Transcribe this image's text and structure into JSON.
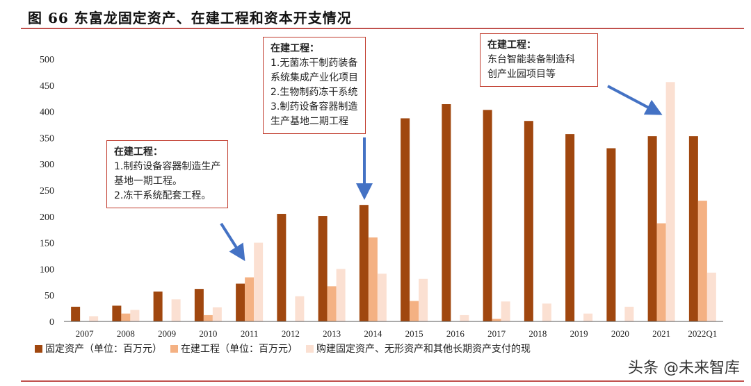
{
  "header": {
    "title": "图 66 东富龙固定资产、在建工程和资本开支情况"
  },
  "chart_data": {
    "type": "bar",
    "categories": [
      "2007",
      "2008",
      "2009",
      "2010",
      "2011",
      "2012",
      "2013",
      "2014",
      "2015",
      "2016",
      "2017",
      "2018",
      "2019",
      "2020",
      "2021",
      "2022Q1"
    ],
    "ylim": [
      0,
      500
    ],
    "yticks": [
      0,
      50,
      100,
      150,
      200,
      250,
      300,
      350,
      400,
      450,
      500
    ],
    "series": [
      {
        "name": "固定资产（单位：百万元）",
        "color": "#a0470f",
        "values": [
          28,
          30,
          57,
          62,
          72,
          205,
          201,
          222,
          387,
          414,
          403,
          382,
          357,
          330,
          353,
          353
        ]
      },
      {
        "name": "在建工程（单位：百万元）",
        "color": "#f4b183",
        "values": [
          0,
          15,
          0,
          12,
          84,
          0,
          67,
          160,
          39,
          0,
          5,
          0,
          0,
          0,
          187,
          230
        ]
      },
      {
        "name": "购建固定资产、无形资产和其他长期资产支付的现金（单位：百万元）",
        "color": "#fbe0d2",
        "values": [
          10,
          22,
          42,
          27,
          150,
          48,
          100,
          91,
          81,
          12,
          38,
          34,
          15,
          28,
          456,
          93
        ]
      }
    ],
    "annotations": [
      {
        "head": "在建工程：",
        "lines": [
          "1.制药设备容器制造生产",
          "基地一期工程。",
          "2.冻干系统配套工程。"
        ],
        "target": "2011"
      },
      {
        "head": "在建工程：",
        "lines": [
          "1.无菌冻干制药装备",
          "系统集成产业化项目",
          "2.生物制药冻干系统",
          "3.制药设备容器制造",
          "生产基地二期工程"
        ],
        "target": "2014"
      },
      {
        "head": "在建工程：",
        "lines": [
          "东台智能装备制造科",
          "创产业园项目等"
        ],
        "target": "2021"
      }
    ]
  },
  "legend": {
    "items": [
      "固定资产（单位：百万元）",
      "在建工程（单位：百万元）",
      "购建固定资产、无形资产和其他长期资产支付的现"
    ]
  },
  "watermark": {
    "text": "头条 @未来智库"
  }
}
